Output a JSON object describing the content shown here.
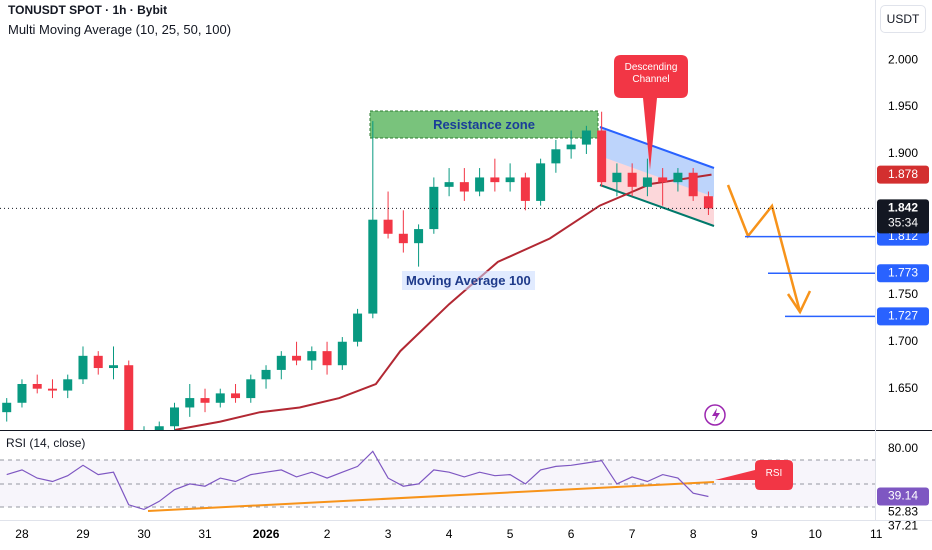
{
  "header": {
    "title": "TONUSDT SPOT · 1h · Bybit",
    "indicator": "Multi Moving Average (10, 25, 50, 100)",
    "currency": "USDT"
  },
  "chart_data": [
    {
      "type": "candlestick",
      "x": [
        -0.25,
        0,
        0.25,
        0.5,
        0.75,
        1,
        1.25,
        1.5,
        1.75,
        2,
        2.25,
        2.5,
        2.75,
        3,
        3.25,
        3.5,
        3.75,
        4,
        4.25,
        4.5,
        4.75,
        5,
        5.25,
        5.5,
        5.75,
        6,
        6.25,
        6.5,
        6.75,
        7,
        7.25,
        7.5,
        7.75,
        8,
        8.25,
        8.5,
        8.75,
        9,
        9.25,
        9.5,
        9.75,
        10,
        10.25,
        10.5,
        10.75,
        11,
        11.25
      ],
      "open": [
        1.625,
        1.635,
        1.655,
        1.65,
        1.648,
        1.66,
        1.685,
        1.672,
        1.675,
        1.6,
        1.605,
        1.61,
        1.63,
        1.64,
        1.635,
        1.645,
        1.64,
        1.66,
        1.67,
        1.685,
        1.68,
        1.69,
        1.675,
        1.7,
        1.73,
        1.83,
        1.815,
        1.805,
        1.82,
        1.865,
        1.87,
        1.86,
        1.875,
        1.87,
        1.875,
        1.85,
        1.89,
        1.905,
        1.91,
        1.925,
        1.87,
        1.88,
        1.865,
        1.875,
        1.87,
        1.88,
        1.855
      ],
      "high": [
        1.64,
        1.66,
        1.665,
        1.66,
        1.665,
        1.695,
        1.69,
        1.695,
        1.68,
        1.61,
        1.615,
        1.635,
        1.655,
        1.65,
        1.65,
        1.655,
        1.665,
        1.675,
        1.69,
        1.7,
        1.695,
        1.7,
        1.705,
        1.735,
        1.935,
        1.86,
        1.84,
        1.825,
        1.875,
        1.885,
        1.885,
        1.885,
        1.895,
        1.89,
        1.88,
        1.895,
        1.915,
        1.925,
        1.93,
        1.945,
        1.89,
        1.89,
        1.895,
        1.885,
        1.885,
        1.885,
        1.86
      ],
      "low": [
        1.615,
        1.63,
        1.645,
        1.64,
        1.64,
        1.655,
        1.665,
        1.66,
        1.595,
        1.59,
        1.595,
        1.605,
        1.62,
        1.625,
        1.63,
        1.635,
        1.635,
        1.65,
        1.66,
        1.675,
        1.67,
        1.665,
        1.67,
        1.695,
        1.725,
        1.81,
        1.795,
        1.78,
        1.815,
        1.855,
        1.85,
        1.855,
        1.86,
        1.86,
        1.84,
        1.845,
        1.88,
        1.895,
        1.9,
        1.865,
        1.855,
        1.855,
        1.855,
        1.845,
        1.86,
        1.85,
        1.835
      ],
      "close": [
        1.635,
        1.655,
        1.65,
        1.648,
        1.66,
        1.685,
        1.672,
        1.675,
        1.6,
        1.605,
        1.61,
        1.63,
        1.64,
        1.635,
        1.645,
        1.64,
        1.66,
        1.67,
        1.685,
        1.68,
        1.69,
        1.675,
        1.7,
        1.73,
        1.83,
        1.815,
        1.805,
        1.82,
        1.865,
        1.87,
        1.86,
        1.875,
        1.87,
        1.875,
        1.85,
        1.89,
        1.905,
        1.91,
        1.925,
        1.87,
        1.88,
        1.865,
        1.875,
        1.87,
        1.88,
        1.855,
        1.842
      ],
      "up_color": "#089981",
      "down_color": "#f23645",
      "xlim": [
        -0.36,
        13.98
      ],
      "xticks": [
        {
          "value": 0,
          "label": "28"
        },
        {
          "value": 1,
          "label": "29"
        },
        {
          "value": 2,
          "label": "30"
        },
        {
          "value": 3,
          "label": "31"
        },
        {
          "value": 4,
          "label": "2026"
        },
        {
          "value": 5,
          "label": "2"
        },
        {
          "value": 6,
          "label": "3"
        },
        {
          "value": 7,
          "label": "4"
        },
        {
          "value": 8,
          "label": "5"
        },
        {
          "value": 9,
          "label": "6"
        },
        {
          "value": 10,
          "label": "7"
        },
        {
          "value": 11,
          "label": "8"
        },
        {
          "value": 12,
          "label": "9"
        },
        {
          "value": 13,
          "label": "10"
        },
        {
          "value": 14,
          "label": "11"
        }
      ],
      "ylim": [
        1.606,
        2.064
      ],
      "yticks": [
        {
          "value": 2.0,
          "label": "2.000"
        },
        {
          "value": 1.95,
          "label": "1.950"
        },
        {
          "value": 1.9,
          "label": "1.900"
        },
        {
          "value": 1.75,
          "label": "1.750"
        },
        {
          "value": 1.7,
          "label": "1.700"
        },
        {
          "value": 1.65,
          "label": "1.650"
        }
      ],
      "overlay": {
        "label": "Moving Average 100",
        "color": "#b22833",
        "x": [
          2.5,
          3.25,
          3.9,
          4.55,
          5.2,
          5.8,
          6.2,
          7.0,
          7.8,
          8.65,
          9.47,
          10.3,
          11.3
        ],
        "values": [
          1.606,
          1.615,
          1.625,
          1.63,
          1.64,
          1.655,
          1.69,
          1.74,
          1.785,
          1.81,
          1.845,
          1.868,
          1.878
        ]
      },
      "ma_value": 1.878,
      "last_price": 1.842,
      "countdown": "35:34",
      "target_levels": [
        1.812,
        1.773,
        1.727
      ],
      "annotations": {
        "resistance": "Resistance zone",
        "channel": "Descending Channel",
        "rsi": "RSI"
      }
    },
    {
      "type": "line",
      "title": "RSI (14, close)",
      "color": "#7e57c2",
      "values": [
        58,
        62,
        55,
        52,
        57,
        66,
        58,
        60,
        32,
        28,
        35,
        45,
        50,
        48,
        55,
        52,
        58,
        60,
        62,
        56,
        60,
        55,
        60,
        65,
        78,
        55,
        48,
        50,
        62,
        60,
        56,
        60,
        57,
        58,
        50,
        62,
        65,
        66,
        68,
        70,
        50,
        56,
        52,
        58,
        55,
        42,
        39.14
      ],
      "ylim": [
        18.9,
        95.5
      ],
      "yticks": [
        {
          "value": 80,
          "label": "80.00"
        },
        52.83,
        37.21
      ],
      "last_value": 39.14
    }
  ]
}
